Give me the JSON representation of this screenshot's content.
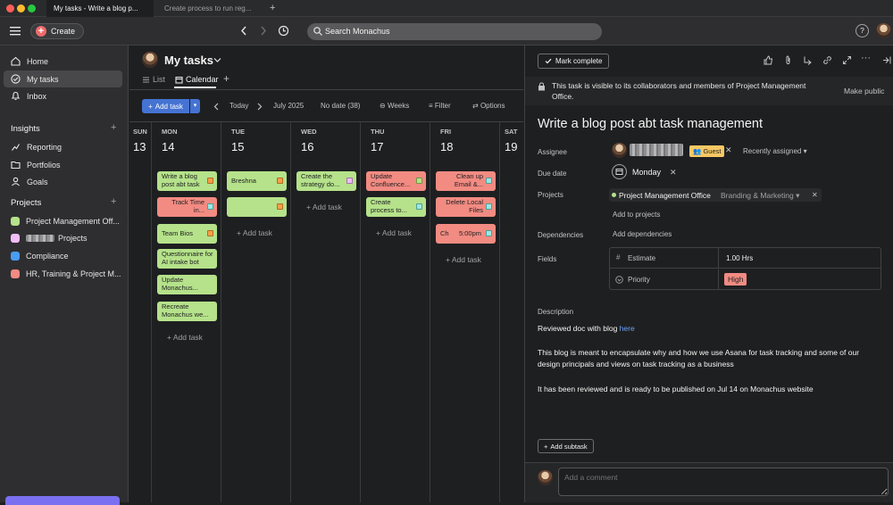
{
  "browser": {
    "tabs": [
      {
        "label": "My tasks - Write a blog p..."
      },
      {
        "label": "Create process to run reg..."
      }
    ],
    "new_tab": "+"
  },
  "topbar": {
    "create_label": "Create",
    "search_placeholder": "Search Monachus",
    "help": "?"
  },
  "sidebar": {
    "nav": [
      {
        "label": "Home",
        "icon": "home-icon"
      },
      {
        "label": "My tasks",
        "icon": "check-circle-icon"
      },
      {
        "label": "Inbox",
        "icon": "bell-icon"
      }
    ],
    "insights_heading": "Insights",
    "insights": [
      {
        "label": "Reporting",
        "icon": "chart-icon"
      },
      {
        "label": "Portfolios",
        "icon": "folder-icon"
      },
      {
        "label": "Goals",
        "icon": "person-icon"
      }
    ],
    "projects_heading": "Projects",
    "projects": [
      {
        "label": "Project Management Off...",
        "color": "#b5e28a"
      },
      {
        "label": "Projects",
        "color": "#f1bdf8"
      },
      {
        "label": "Compliance",
        "color": "#4a9cf1"
      },
      {
        "label": "HR, Training & Project M...",
        "color": "#f28b82"
      }
    ]
  },
  "main": {
    "title": "My tasks",
    "tabs": [
      {
        "label": "List"
      },
      {
        "label": "Calendar"
      }
    ],
    "toolbar": {
      "add_task": "Add task",
      "today": "Today",
      "month": "July 2025",
      "no_date": "No date (38)",
      "weeks": "Weeks",
      "filter": "Filter",
      "options": "Options"
    },
    "add_task_in_col": "Add task",
    "days": [
      {
        "abbr": "SUN",
        "num": "13"
      },
      {
        "abbr": "MON",
        "num": "14"
      },
      {
        "abbr": "TUE",
        "num": "15"
      },
      {
        "abbr": "WED",
        "num": "16"
      },
      {
        "abbr": "THU",
        "num": "17"
      },
      {
        "abbr": "FRI",
        "num": "18"
      },
      {
        "abbr": "SAT",
        "num": "19"
      }
    ],
    "tasks": {
      "mon": [
        {
          "label": "Write a blog post abt task",
          "color": "green",
          "tag": "orange"
        },
        {
          "label": "Track Time in...",
          "color": "red",
          "tag": "blue"
        },
        {
          "label": "Team Bios",
          "color": "green",
          "tag": "orange"
        },
        {
          "label": "Questionnaire for AI intake bot",
          "color": "green",
          "tag": ""
        },
        {
          "label": "Update Monachus...",
          "color": "green",
          "tag": ""
        },
        {
          "label": "Recreate Monachus we...",
          "color": "green",
          "tag": ""
        }
      ],
      "tue": [
        {
          "label": "Breshna",
          "color": "green",
          "tag": "orange"
        },
        {
          "label": "",
          "color": "green",
          "tag": "orange"
        }
      ],
      "wed": [
        {
          "label": "Create the strategy do...",
          "color": "green",
          "tag": "pink"
        }
      ],
      "thu": [
        {
          "label": "Update Confluence...",
          "color": "red",
          "tag": "lime"
        },
        {
          "label": "Create process to...",
          "color": "green",
          "tag": "blue"
        }
      ],
      "fri": [
        {
          "label": "Clean up Email &...",
          "color": "red",
          "tag": "blue"
        },
        {
          "label": "Delete Local Files",
          "color": "red",
          "tag": "blue"
        },
        {
          "label": "5:00pm",
          "prefix": "Ch",
          "color": "red",
          "tag": "blue"
        }
      ]
    }
  },
  "detail": {
    "mark_complete": "Mark complete",
    "visibility_text": "This task is visible to its collaborators and members of Project Management Office.",
    "make_public": "Make public",
    "title": "Write a blog post abt task management",
    "labels": {
      "assignee": "Assignee",
      "due_date": "Due date",
      "projects": "Projects",
      "dependencies": "Dependencies",
      "fields": "Fields",
      "description": "Description"
    },
    "assignee": {
      "badge": "Guest",
      "recently_assigned": "Recently assigned"
    },
    "due_date_value": "Monday",
    "project": {
      "name": "Project Management Office",
      "section": "Branding & Marketing",
      "color": "#b5e28a"
    },
    "add_to_projects": "Add to projects",
    "add_dependencies": "Add dependencies",
    "fields": [
      {
        "label": "Estimate",
        "value": "1.00 Hrs"
      },
      {
        "label": "Priority",
        "value": "High"
      }
    ],
    "description": {
      "line1_text": "Reviewed doc with blog ",
      "line1_link": "here",
      "para2_a": "This blog is meant to encapsulate why and how we use Asana for task tracking and some of our",
      "para2_b": "design principals and views on task tracking as a business",
      "para3": "It has been reviewed and is ready to be published on Jul 14 on Monachus website"
    },
    "add_subtask": "Add subtask",
    "comment_placeholder": "Add a comment"
  }
}
